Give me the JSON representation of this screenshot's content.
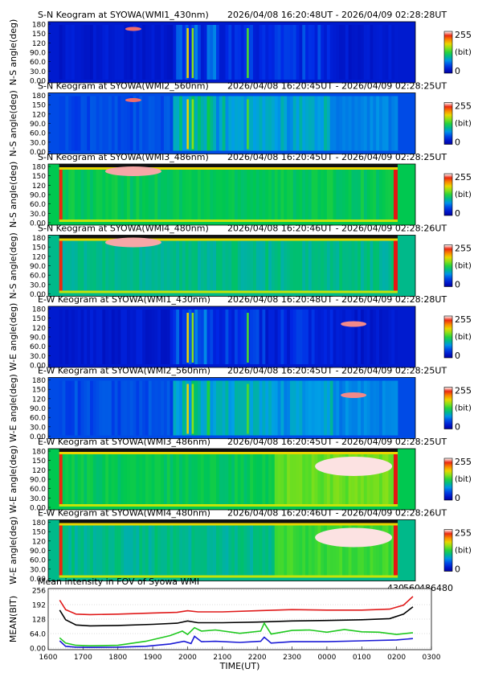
{
  "chart_data": [
    {
      "type": "heatmap",
      "title": "S-N Keogram at SYOWA(WMI1_430nm)",
      "time_range": "2026/04/08 16:20:48UT - 2026/04/09 02:28:28UT",
      "ylabel": "N-S angle(deg)",
      "yticks": [
        "180",
        "150",
        "120",
        "90.0",
        "60.0",
        "30.0",
        "0.00"
      ],
      "ylim": [
        0,
        180
      ],
      "colorbar": {
        "min": "0",
        "max": "255",
        "unit": "(bit)"
      },
      "base": 0.1,
      "band": "430"
    },
    {
      "type": "heatmap",
      "title": "S-N Keogram at SYOWA(WMI2_560nm)",
      "time_range": "2026/04/08 16:20:45UT - 2026/04/09 02:28:25UT",
      "ylabel": "N-S angle(deg)",
      "yticks": [
        "180",
        "150",
        "120",
        "90.0",
        "60.0",
        "30.0",
        "0.00"
      ],
      "ylim": [
        0,
        180
      ],
      "colorbar": {
        "min": "0",
        "max": "255",
        "unit": "(bit)"
      },
      "base": 0.2,
      "band": "560"
    },
    {
      "type": "heatmap",
      "title": "S-N Keogram at SYOWA(WMI3_486nm)",
      "time_range": "2026/04/08 16:20:45UT - 2026/04/09 02:28:25UT",
      "ylabel": "N-S angle(deg)",
      "yticks": [
        "180",
        "150",
        "120",
        "90.0",
        "60.0",
        "30.0",
        "0.00"
      ],
      "ylim": [
        0,
        180
      ],
      "colorbar": {
        "min": "0",
        "max": "255",
        "unit": "(bit)"
      },
      "base": 0.45,
      "band": "486"
    },
    {
      "type": "heatmap",
      "title": "S-N Keogram at SYOWA(WMI4_480nm)",
      "time_range": "2026/04/08 16:20:46UT - 2026/04/09 02:28:26UT",
      "ylabel": "N-S angle(deg)",
      "yticks": [
        "180",
        "150",
        "120",
        "90.0",
        "60.0",
        "30.0",
        "0.00"
      ],
      "ylim": [
        0,
        180
      ],
      "colorbar": {
        "min": "0",
        "max": "255",
        "unit": "(bit)"
      },
      "base": 0.4,
      "band": "480"
    },
    {
      "type": "heatmap",
      "title": "E-W Keogram at SYOWA(WMI1_430nm)",
      "time_range": "2026/04/08 16:20:48UT - 2026/04/09 02:28:28UT",
      "ylabel": "W-E angle(deg)",
      "yticks": [
        "180",
        "150",
        "120",
        "90.0",
        "60.0",
        "30.0",
        "0.00"
      ],
      "ylim": [
        0,
        180
      ],
      "colorbar": {
        "min": "0",
        "max": "255",
        "unit": "(bit)"
      },
      "base": 0.1,
      "band": "430"
    },
    {
      "type": "heatmap",
      "title": "E-W Keogram at SYOWA(WMI2_560nm)",
      "time_range": "2026/04/08 16:20:45UT - 2026/04/09 02:28:25UT",
      "ylabel": "W-E angle(deg)",
      "yticks": [
        "180",
        "150",
        "120",
        "90.0",
        "60.0",
        "30.0",
        "0.00"
      ],
      "ylim": [
        0,
        180
      ],
      "colorbar": {
        "min": "0",
        "max": "255",
        "unit": "(bit)"
      },
      "base": 0.2,
      "band": "560"
    },
    {
      "type": "heatmap",
      "title": "E-W Keogram at SYOWA(WMI3_486nm)",
      "time_range": "2026/04/08 16:20:45UT - 2026/04/09 02:28:25UT",
      "ylabel": "W-E angle(deg)",
      "yticks": [
        "180",
        "150",
        "120",
        "90.0",
        "60.0",
        "30.0",
        "0.00"
      ],
      "ylim": [
        0,
        180
      ],
      "colorbar": {
        "min": "0",
        "max": "255",
        "unit": "(bit)"
      },
      "base": 0.45,
      "band": "486"
    },
    {
      "type": "heatmap",
      "title": "E-W Keogram at SYOWA(WMI4_480nm)",
      "time_range": "2026/04/08 16:20:46UT - 2026/04/09 02:28:26UT",
      "ylabel": "W-E angle(deg)",
      "yticks": [
        "180",
        "150",
        "120",
        "90.0",
        "60.0",
        "30.0",
        "0.00"
      ],
      "ylim": [
        0,
        180
      ],
      "colorbar": {
        "min": "0",
        "max": "255",
        "unit": "(bit)"
      },
      "base": 0.4,
      "band": "480"
    },
    {
      "type": "line",
      "title": "Mean intensity in FOV of Syowa WMI",
      "ylabel": "MEAN(BIT)",
      "xlabel": "TIME(UT)",
      "xticks": [
        "1600",
        "1700",
        "1800",
        "1900",
        "2000",
        "2100",
        "2200",
        "2300",
        "0000",
        "0100",
        "0200",
        "0300"
      ],
      "yticks": [
        "256",
        "192",
        "128",
        "64.0",
        "0.00"
      ],
      "ylim": [
        0,
        256
      ],
      "xlim_hours": [
        16,
        27
      ],
      "legend": [
        {
          "label": "430",
          "color": "#1a1ad6"
        },
        {
          "label": "560",
          "color": "#1ec81e"
        },
        {
          "label": "486",
          "color": "#e01a1a"
        },
        {
          "label": "480",
          "color": "#000000"
        }
      ],
      "series": [
        {
          "name": "486",
          "color": "#e01a1a",
          "x": [
            16.33,
            16.5,
            16.8,
            17.2,
            18.0,
            19.0,
            19.7,
            20.0,
            20.3,
            21.0,
            22.0,
            23.0,
            24.0,
            25.0,
            25.8,
            26.2,
            26.47
          ],
          "y": [
            212,
            170,
            150,
            148,
            150,
            155,
            158,
            165,
            160,
            160,
            165,
            170,
            168,
            168,
            172,
            190,
            228
          ]
        },
        {
          "name": "480",
          "color": "#000000",
          "x": [
            16.33,
            16.5,
            16.8,
            17.2,
            18.0,
            19.0,
            19.7,
            20.0,
            20.3,
            21.0,
            22.0,
            23.0,
            24.0,
            25.0,
            25.8,
            26.2,
            26.47
          ],
          "y": [
            168,
            125,
            102,
            98,
            100,
            105,
            110,
            120,
            112,
            112,
            115,
            120,
            122,
            125,
            130,
            150,
            182
          ]
        },
        {
          "name": "560",
          "color": "#1ec81e",
          "x": [
            16.33,
            16.5,
            16.8,
            17.2,
            18.0,
            18.8,
            19.5,
            19.85,
            20.0,
            20.2,
            20.4,
            20.8,
            21.5,
            22.1,
            22.2,
            22.4,
            23.0,
            23.5,
            24.0,
            24.5,
            25.0,
            25.5,
            26.0,
            26.47
          ],
          "y": [
            45,
            22,
            12,
            10,
            12,
            30,
            55,
            75,
            60,
            90,
            75,
            80,
            65,
            75,
            110,
            62,
            78,
            80,
            70,
            82,
            72,
            70,
            60,
            68
          ]
        },
        {
          "name": "430",
          "color": "#1a1ad6",
          "x": [
            16.33,
            16.5,
            16.8,
            17.2,
            18.0,
            18.8,
            19.5,
            19.9,
            20.1,
            20.2,
            20.4,
            20.8,
            21.5,
            22.1,
            22.2,
            22.4,
            23.0,
            24.0,
            25.0,
            26.0,
            26.47
          ],
          "y": [
            32,
            8,
            4,
            3,
            4,
            8,
            18,
            30,
            20,
            52,
            28,
            30,
            25,
            30,
            48,
            22,
            28,
            28,
            32,
            36,
            42
          ]
        }
      ]
    }
  ]
}
